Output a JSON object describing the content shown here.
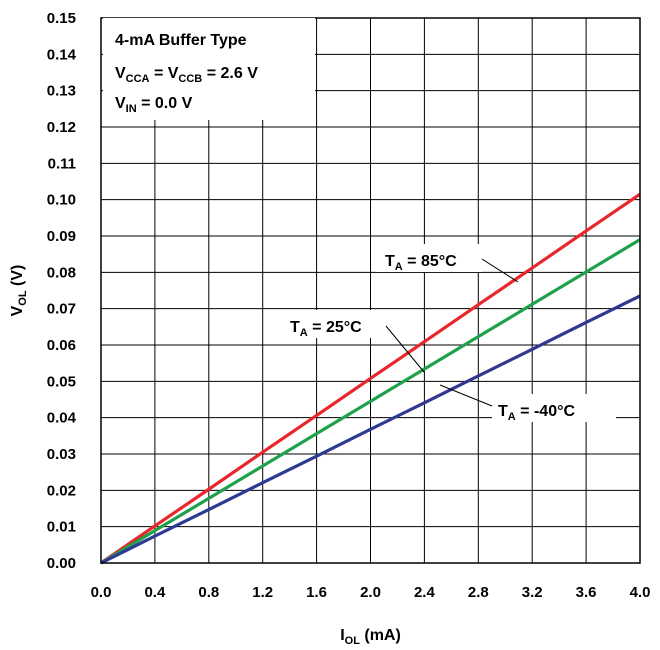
{
  "chart_data": {
    "type": "line",
    "xlabel": {
      "main": "I",
      "sub": "OL",
      "rest": " (mA)"
    },
    "ylabel": {
      "main": "V",
      "sub": "OL",
      "rest": " (V)"
    },
    "xlim": [
      0,
      4.0
    ],
    "ylim": [
      0,
      0.15
    ],
    "x_ticks": [
      "0.0",
      "0.4",
      "0.8",
      "1.2",
      "1.6",
      "2.0",
      "2.4",
      "2.8",
      "3.2",
      "3.6",
      "4.0"
    ],
    "y_ticks": [
      "0.00",
      "0.01",
      "0.02",
      "0.03",
      "0.04",
      "0.05",
      "0.06",
      "0.07",
      "0.08",
      "0.09",
      "0.10",
      "0.11",
      "0.12",
      "0.13",
      "0.14",
      "0.15"
    ],
    "grid": true,
    "conditions": {
      "line1": "4-mA Buffer Type",
      "line2": {
        "a": "V",
        "a_sub": "CCA",
        "b": " = V",
        "b_sub": "CCB",
        "c": " = 2.6 V"
      },
      "line3": {
        "a": "V",
        "a_sub": "IN",
        "c": " = 0.0 V"
      }
    },
    "series": [
      {
        "name": {
          "main": "T",
          "sub": "A",
          "rest": " = 85°C"
        },
        "color": "#e8262d",
        "x": [
          0,
          0.4,
          0.8,
          1.2,
          1.6,
          2.0,
          2.4,
          2.8,
          3.2,
          3.6,
          4.0
        ],
        "y": [
          0,
          0.0102,
          0.0203,
          0.0305,
          0.0406,
          0.0508,
          0.0609,
          0.0711,
          0.0812,
          0.0914,
          0.1015
        ]
      },
      {
        "name": {
          "main": "T",
          "sub": "A",
          "rest": " = 25°C"
        },
        "color": "#1ea14a",
        "x": [
          0,
          0.4,
          0.8,
          1.2,
          1.6,
          2.0,
          2.4,
          2.8,
          3.2,
          3.6,
          4.0
        ],
        "y": [
          0,
          0.0089,
          0.0178,
          0.0267,
          0.0356,
          0.0445,
          0.0534,
          0.0623,
          0.0712,
          0.0801,
          0.089
        ]
      },
      {
        "name": {
          "main": "T",
          "sub": "A",
          "rest": " = -40°C"
        },
        "color": "#2e3a92",
        "x": [
          0,
          0.4,
          0.8,
          1.2,
          1.6,
          2.0,
          2.4,
          2.8,
          3.2,
          3.6,
          4.0
        ],
        "y": [
          0,
          0.0074,
          0.0147,
          0.0221,
          0.0294,
          0.0368,
          0.0441,
          0.0515,
          0.0588,
          0.0662,
          0.0735
        ]
      }
    ]
  }
}
